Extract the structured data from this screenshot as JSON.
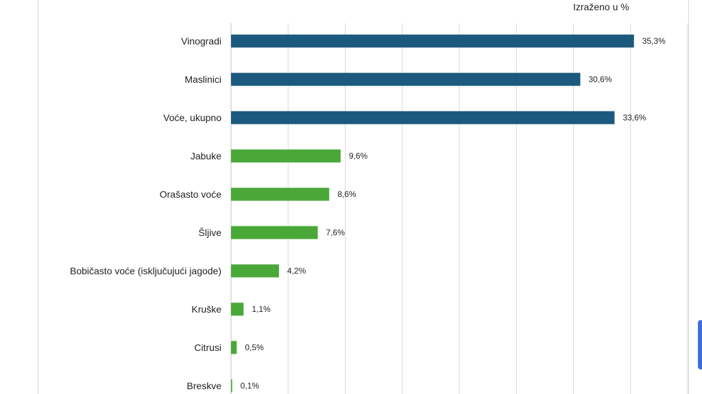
{
  "unit_label": "Izraženo u %",
  "chart_data": {
    "type": "bar",
    "orientation": "horizontal",
    "categories": [
      "Vinogradi",
      "Maslinici",
      "Voće, ukupno",
      "Jabuke",
      "Orašasto voće",
      "Šljive",
      "Bobičasto voće (isključujući jagode)",
      "Kruške",
      "Citrusi",
      "Breskve"
    ],
    "values": [
      35.3,
      30.6,
      33.6,
      9.6,
      8.6,
      7.6,
      4.2,
      1.1,
      0.5,
      0.1
    ],
    "value_labels": [
      "35,3%",
      "30,6%",
      "33,6%",
      "9,6%",
      "8,6%",
      "7,6%",
      "4,2%",
      "1,1%",
      "0,5%",
      "0,1%"
    ],
    "bar_colors": [
      "#1b5a7e",
      "#1b5a7e",
      "#1b5a7e",
      "#4aa838",
      "#4aa838",
      "#4aa838",
      "#4aa838",
      "#4aa838",
      "#4aa838",
      "#4aa838"
    ],
    "xlim": [
      0,
      40
    ],
    "grid": true
  }
}
